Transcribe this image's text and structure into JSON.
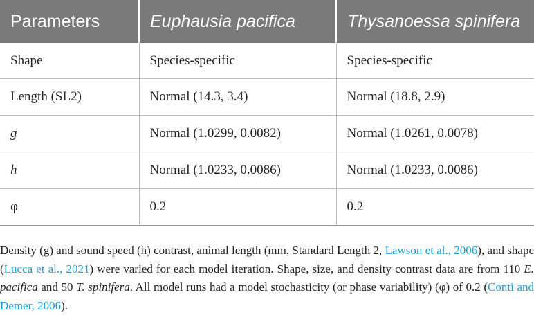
{
  "table": {
    "headers": [
      "Parameters",
      "Euphausia pacifica",
      "Thysanoessa spinifera"
    ],
    "rows": [
      {
        "param": "Shape",
        "e_pacifica": "Species-specific",
        "t_spinifera": "Species-specific"
      },
      {
        "param": "Length (SL2)",
        "e_pacifica": "Normal (14.3, 3.4)",
        "t_spinifera": "Normal (18.8, 2.9)"
      },
      {
        "param": "g",
        "e_pacifica": "Normal (1.0299, 0.0082)",
        "t_spinifera": "Normal (1.0261, 0.0078)"
      },
      {
        "param": "h",
        "e_pacifica": "Normal (1.0233, 0.0086)",
        "t_spinifera": "Normal (1.0233, 0.0086)"
      },
      {
        "param": "φ",
        "e_pacifica": "0.2",
        "t_spinifera": "0.2"
      }
    ]
  },
  "caption": {
    "part1": "Density (g) and sound speed (h) contrast, animal length (mm, Standard Length 2, ",
    "cite1": "Lawson et al., 2006",
    "part2": "), and shape (",
    "cite2": "Lucca et al., 2021",
    "part3": ") were varied for each model iteration. Shape, size, and density contrast data are from 110 ",
    "species1": "E. pacifica",
    "part4": " and 50 ",
    "species2": "T. spinifera",
    "part5": ". All model runs had a model stochasticity (or phase variability) (φ) of 0.2 (",
    "cite3": "Conti and Demer, 2006",
    "part6": ")."
  },
  "colors": {
    "header_bg": "#7a7a7a",
    "header_text": "#ffffff",
    "link": "#1aa0d8",
    "body_text": "#222222",
    "grid": "#bdbdbd"
  }
}
